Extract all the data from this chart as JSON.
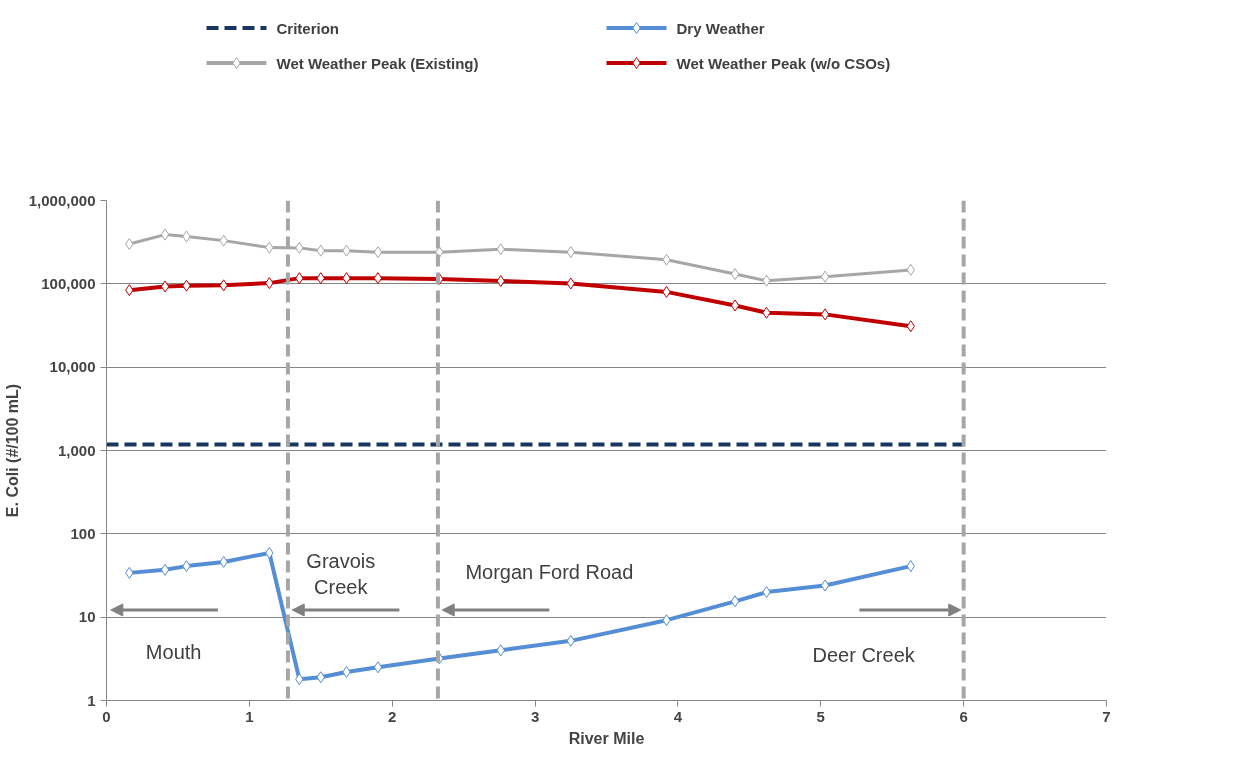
{
  "chart_data": {
    "type": "line",
    "xlabel": "River Mile",
    "ylabel": "E. Coli (#/100 mL)",
    "log": "y",
    "grid": "y",
    "legend": "top",
    "marker": "diamond",
    "line_style": "solid",
    "xlim": [
      0,
      7
    ],
    "xticks": [
      0,
      1,
      2,
      3,
      4,
      5,
      6,
      7
    ],
    "ylim": [
      1,
      1000000
    ],
    "yticks": [
      {
        "value": 1,
        "label": "1"
      },
      {
        "value": 10,
        "label": "10"
      },
      {
        "value": 100,
        "label": "100"
      },
      {
        "value": 1000,
        "label": "1,000"
      },
      {
        "value": 10000,
        "label": "10,000"
      },
      {
        "value": 100000,
        "label": "100,000"
      },
      {
        "value": 1000000,
        "label": "1,000,000"
      }
    ],
    "x": [
      0.16,
      0.41,
      0.56,
      0.82,
      1.14,
      1.35,
      1.5,
      1.68,
      1.9,
      2.33,
      2.76,
      3.25,
      3.92,
      4.4,
      4.62,
      5.03,
      5.63
    ],
    "series": [
      {
        "name": "Criterion",
        "color": "#17375e",
        "x": [
          0,
          6
        ],
        "values": [
          1180,
          1180
        ],
        "marker": "none",
        "line_style": "dashed"
      },
      {
        "name": "Dry Weather",
        "color": "#558ed5",
        "values": [
          34,
          37,
          41,
          46,
          59,
          1.8,
          1.9,
          2.2,
          2.5,
          3.2,
          4.0,
          5.2,
          9.2,
          15.5,
          20,
          24,
          41
        ]
      },
      {
        "name": "Wet Weather  Peak (Existing)",
        "color": "#a6a6a6",
        "values": [
          300000,
          390000,
          370000,
          330000,
          272000,
          270000,
          250000,
          250000,
          240000,
          240000,
          260000,
          240000,
          195000,
          131000,
          109000,
          122000,
          147000
        ]
      },
      {
        "name": "Wet Weather  Peak (w/o CSOs)",
        "color": "#c00000",
        "values": [
          84000,
          93000,
          95000,
          96000,
          102000,
          117000,
          117000,
          117000,
          117000,
          114000,
          108000,
          101000,
          80000,
          55000,
          45000,
          43000,
          31000
        ]
      }
    ],
    "ref_lines": [
      {
        "axis": "x",
        "value": 1.27,
        "color": "#a6a6a6",
        "line_style": "dashed"
      },
      {
        "axis": "x",
        "value": 2.32,
        "color": "#a6a6a6",
        "line_style": "dashed"
      },
      {
        "axis": "x",
        "value": 6.0,
        "color": "#a6a6a6",
        "line_style": "dashed"
      }
    ],
    "annotations": [
      "Mouth",
      "Gravois\nCreek",
      "Morgan Ford Road",
      "Deer Creek"
    ]
  }
}
